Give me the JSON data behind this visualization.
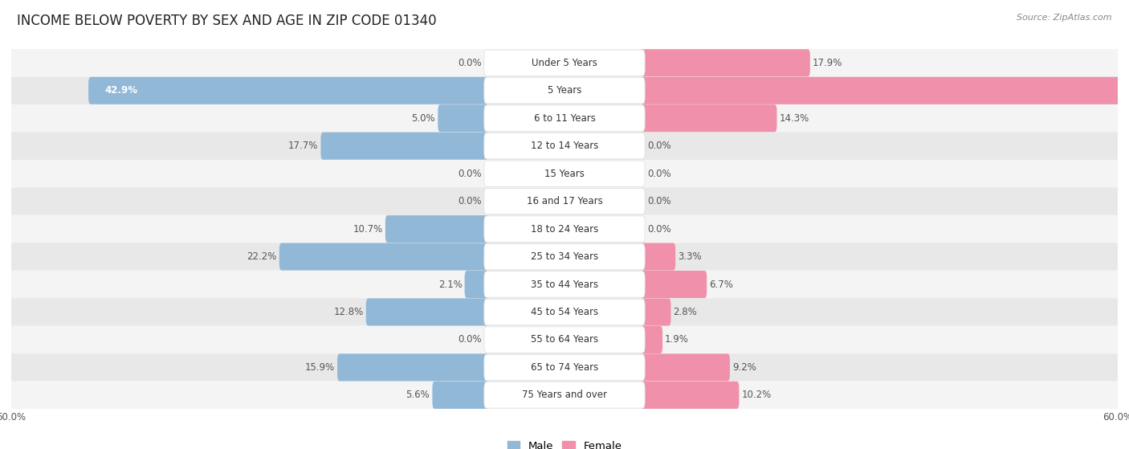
{
  "title": "INCOME BELOW POVERTY BY SEX AND AGE IN ZIP CODE 01340",
  "source": "Source: ZipAtlas.com",
  "categories": [
    "Under 5 Years",
    "5 Years",
    "6 to 11 Years",
    "12 to 14 Years",
    "15 Years",
    "16 and 17 Years",
    "18 to 24 Years",
    "25 to 34 Years",
    "35 to 44 Years",
    "45 to 54 Years",
    "55 to 64 Years",
    "65 to 74 Years",
    "75 Years and over"
  ],
  "male_values": [
    0.0,
    42.9,
    5.0,
    17.7,
    0.0,
    0.0,
    10.7,
    22.2,
    2.1,
    12.8,
    0.0,
    15.9,
    5.6
  ],
  "female_values": [
    17.9,
    60.0,
    14.3,
    0.0,
    0.0,
    0.0,
    0.0,
    3.3,
    6.7,
    2.8,
    1.9,
    9.2,
    10.2
  ],
  "male_color": "#92b8d8",
  "female_color": "#f090aa",
  "bar_height": 0.52,
  "max_value": 60.0,
  "title_fontsize": 12,
  "label_fontsize": 8.5,
  "category_fontsize": 8.5,
  "row_bg_light": "#f4f4f4",
  "row_bg_dark": "#e8e8e8",
  "label_color": "#555555",
  "pill_bg": "#ffffff",
  "pill_border": "#dddddd"
}
